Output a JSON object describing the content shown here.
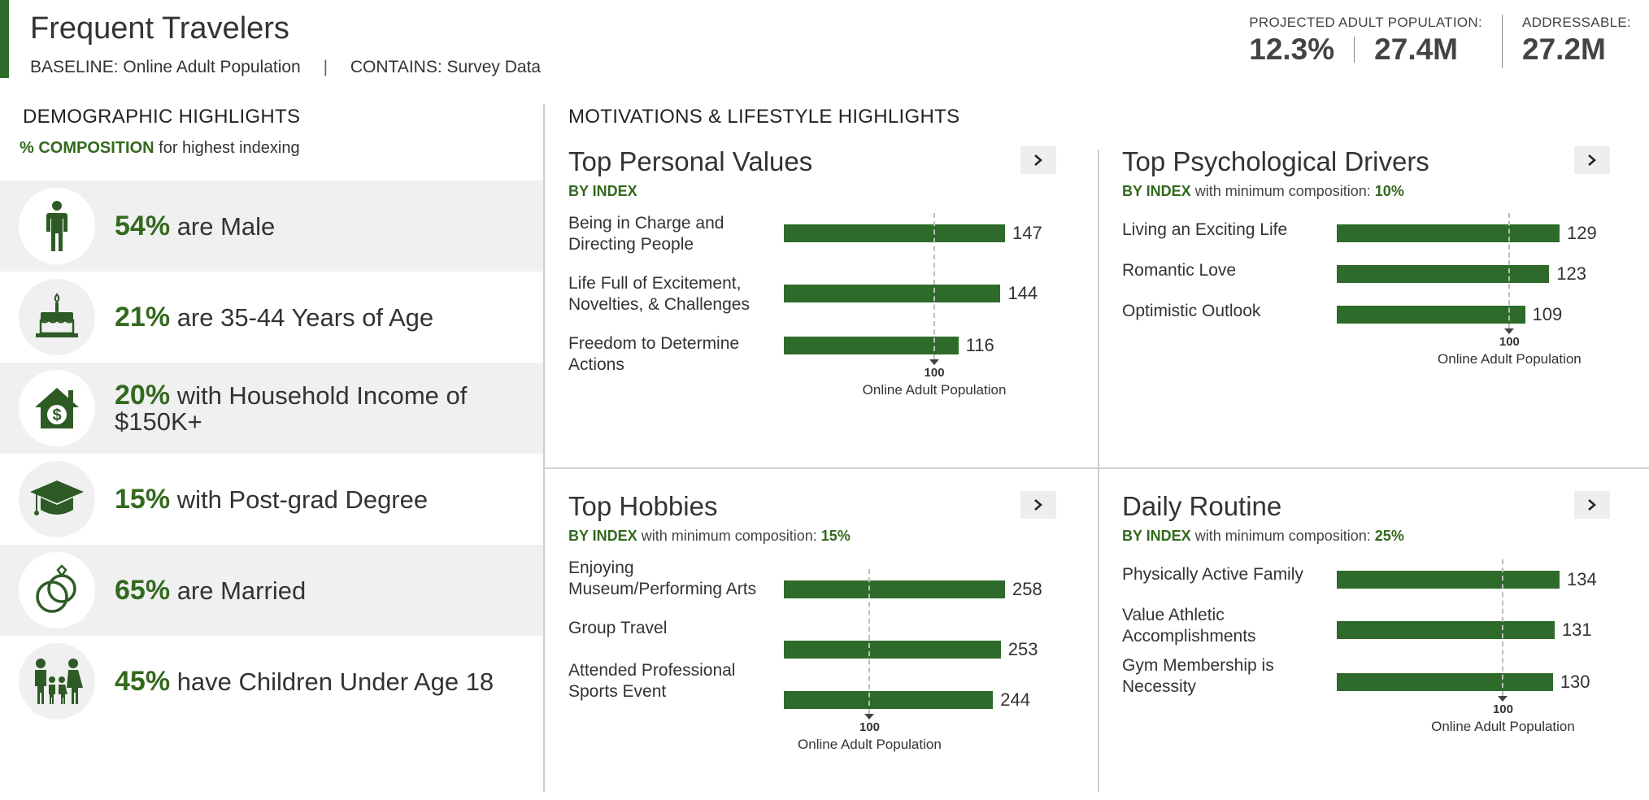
{
  "header": {
    "title": "Frequent Travelers",
    "baseline_label": "BASELINE:",
    "baseline_value": "Online Adult Population",
    "contains_label": "CONTAINS:",
    "contains_value": "Survey Data",
    "projected_label": "PROJECTED ADULT POPULATION:",
    "projected_pct": "12.3%",
    "projected_count": "27.4M",
    "addressable_label": "ADDRESSABLE:",
    "addressable_count": "27.2M",
    "accent_color": "#2e6b2a"
  },
  "demographics": {
    "heading": "DEMOGRAPHIC HIGHLIGHTS",
    "sub_bold": "% COMPOSITION",
    "sub_rest": "for highest indexing",
    "items": [
      {
        "pct": "54%",
        "text": "are Male",
        "icon": "male-person-icon"
      },
      {
        "pct": "21%",
        "text": "are 35-44 Years of Age",
        "icon": "birthday-cake-icon"
      },
      {
        "pct": "20%",
        "text": "with Household Income of $150K+",
        "icon": "house-dollar-icon"
      },
      {
        "pct": "15%",
        "text": "with Post-grad Degree",
        "icon": "graduation-cap-icon"
      },
      {
        "pct": "65%",
        "text": "are Married",
        "icon": "wedding-rings-icon"
      },
      {
        "pct": "45%",
        "text": "have Children Under Age 18",
        "icon": "family-icon"
      }
    ]
  },
  "motivations": {
    "heading": "MOTIVATIONS & LIFESTYLE HIGHLIGHTS",
    "reference": {
      "value": "100",
      "label": "Online Adult Population"
    },
    "panels": [
      {
        "title": "Top Personal Values",
        "sub_bold": "BY INDEX",
        "sub_rest": "",
        "sub_min": "",
        "bars": [
          {
            "label": "Being in Charge and Directing People",
            "value": 147
          },
          {
            "label": "Life Full of Excitement, Novelties, & Challenges",
            "value": 144
          },
          {
            "label": "Freedom to Determine Actions",
            "value": 116
          }
        ]
      },
      {
        "title": "Top Psychological Drivers",
        "sub_bold": "BY INDEX",
        "sub_rest": "with minimum composition:",
        "sub_min": "10%",
        "bars": [
          {
            "label": "Living an Exciting Life",
            "value": 129
          },
          {
            "label": "Romantic Love",
            "value": 123
          },
          {
            "label": "Optimistic Outlook",
            "value": 109
          }
        ]
      },
      {
        "title": "Top Hobbies",
        "sub_bold": "BY INDEX",
        "sub_rest": "with minimum composition:",
        "sub_min": "15%",
        "bars": [
          {
            "label": "Enjoying Museum/Performing Arts",
            "value": 258
          },
          {
            "label": "Group Travel",
            "value": 253
          },
          {
            "label": "Attended Professional Sports Event",
            "value": 244
          }
        ]
      },
      {
        "title": "Daily Routine",
        "sub_bold": "BY INDEX",
        "sub_rest": "with minimum composition:",
        "sub_min": "25%",
        "bars": [
          {
            "label": "Physically Active Family",
            "value": 134
          },
          {
            "label": "Value Athletic Accomplishments",
            "value": 131
          },
          {
            "label": "Gym Membership is Necessity",
            "value": 130
          }
        ]
      }
    ]
  }
}
